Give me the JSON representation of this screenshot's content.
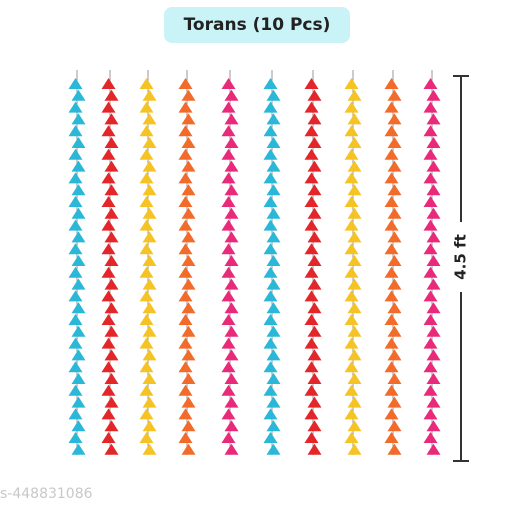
{
  "title": "Torans (10 Pcs)",
  "height_label": "4.5 ft",
  "watermark": "s-448831086"
}
